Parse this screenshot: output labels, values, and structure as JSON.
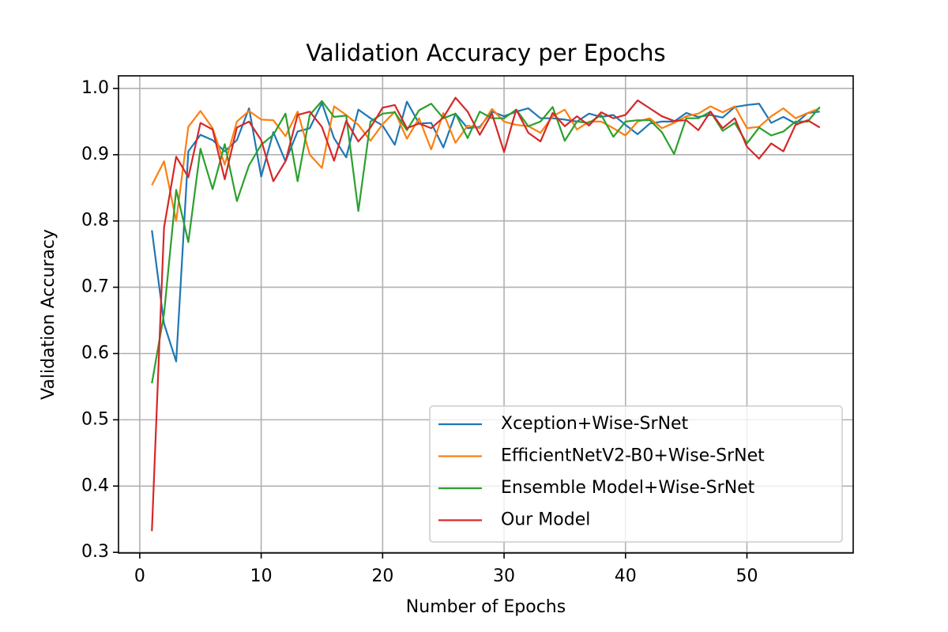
{
  "chart_data": {
    "type": "line",
    "title": "Validation Accuracy per Epochs",
    "x_label": "Number of Epochs",
    "y_label": "Validation Accuracy",
    "x": [
      1,
      2,
      3,
      4,
      5,
      6,
      7,
      8,
      9,
      10,
      11,
      12,
      13,
      14,
      15,
      16,
      17,
      18,
      19,
      20,
      21,
      22,
      23,
      24,
      25,
      26,
      27,
      28,
      29,
      30,
      31,
      32,
      33,
      34,
      35,
      36,
      37,
      38,
      39,
      40,
      41,
      42,
      43,
      44,
      45,
      46,
      47,
      48,
      49,
      50,
      51,
      52,
      53,
      54,
      55,
      56
    ],
    "series": [
      {
        "name": "Xception+Wise-SrNet",
        "color": "#1f77b4",
        "values": [
          0.786,
          0.645,
          0.588,
          0.905,
          0.93,
          0.922,
          0.905,
          0.922,
          0.97,
          0.867,
          0.934,
          0.89,
          0.935,
          0.94,
          0.978,
          0.925,
          0.896,
          0.968,
          0.955,
          0.944,
          0.915,
          0.98,
          0.947,
          0.948,
          0.911,
          0.962,
          0.94,
          0.942,
          0.965,
          0.958,
          0.965,
          0.97,
          0.955,
          0.955,
          0.953,
          0.95,
          0.962,
          0.957,
          0.96,
          0.945,
          0.931,
          0.947,
          0.95,
          0.95,
          0.963,
          0.957,
          0.96,
          0.956,
          0.972,
          0.975,
          0.977,
          0.948,
          0.957,
          0.947,
          0.963,
          0.965
        ]
      },
      {
        "name": "EfficientNetV2-B0+Wise-SrNet",
        "color": "#ff7f0e",
        "values": [
          0.854,
          0.89,
          0.8,
          0.942,
          0.966,
          0.94,
          0.885,
          0.95,
          0.966,
          0.953,
          0.952,
          0.928,
          0.965,
          0.9,
          0.88,
          0.973,
          0.96,
          0.945,
          0.921,
          0.946,
          0.965,
          0.924,
          0.955,
          0.908,
          0.963,
          0.918,
          0.944,
          0.94,
          0.969,
          0.95,
          0.945,
          0.943,
          0.933,
          0.958,
          0.968,
          0.938,
          0.95,
          0.95,
          0.94,
          0.929,
          0.95,
          0.955,
          0.94,
          0.948,
          0.958,
          0.962,
          0.973,
          0.964,
          0.973,
          0.94,
          0.942,
          0.958,
          0.97,
          0.955,
          0.963,
          0.97
        ]
      },
      {
        "name": "Ensemble Model+Wise-SrNet",
        "color": "#2ca02c",
        "values": [
          0.555,
          0.66,
          0.847,
          0.768,
          0.909,
          0.848,
          0.916,
          0.83,
          0.884,
          0.915,
          0.93,
          0.962,
          0.86,
          0.96,
          0.981,
          0.957,
          0.959,
          0.815,
          0.95,
          0.962,
          0.964,
          0.937,
          0.967,
          0.977,
          0.955,
          0.962,
          0.925,
          0.965,
          0.955,
          0.955,
          0.968,
          0.943,
          0.95,
          0.972,
          0.921,
          0.95,
          0.948,
          0.96,
          0.927,
          0.95,
          0.952,
          0.952,
          0.934,
          0.901,
          0.955,
          0.955,
          0.965,
          0.936,
          0.948,
          0.917,
          0.941,
          0.929,
          0.935,
          0.95,
          0.95,
          0.972
        ]
      },
      {
        "name": "Our Model",
        "color": "#d62728",
        "values": [
          0.332,
          0.79,
          0.897,
          0.866,
          0.948,
          0.938,
          0.863,
          0.941,
          0.95,
          0.922,
          0.86,
          0.89,
          0.96,
          0.965,
          0.942,
          0.891,
          0.951,
          0.92,
          0.941,
          0.971,
          0.975,
          0.94,
          0.947,
          0.94,
          0.956,
          0.986,
          0.965,
          0.93,
          0.962,
          0.904,
          0.968,
          0.933,
          0.92,
          0.963,
          0.943,
          0.958,
          0.944,
          0.964,
          0.955,
          0.96,
          0.982,
          0.97,
          0.958,
          0.951,
          0.952,
          0.937,
          0.965,
          0.94,
          0.955,
          0.912,
          0.894,
          0.917,
          0.905,
          0.945,
          0.952,
          0.941
        ]
      }
    ],
    "xlim": [
      -1.75,
      58.75
    ],
    "ylim": [
      0.299,
      1.019
    ],
    "xticks": [
      0,
      10,
      20,
      30,
      40,
      50
    ],
    "yticks": [
      0.3,
      0.4,
      0.5,
      0.6,
      0.7,
      0.8,
      0.9,
      {
        "value": 1,
        "label": "1.0"
      }
    ],
    "grid": true,
    "legend": "lower right"
  }
}
